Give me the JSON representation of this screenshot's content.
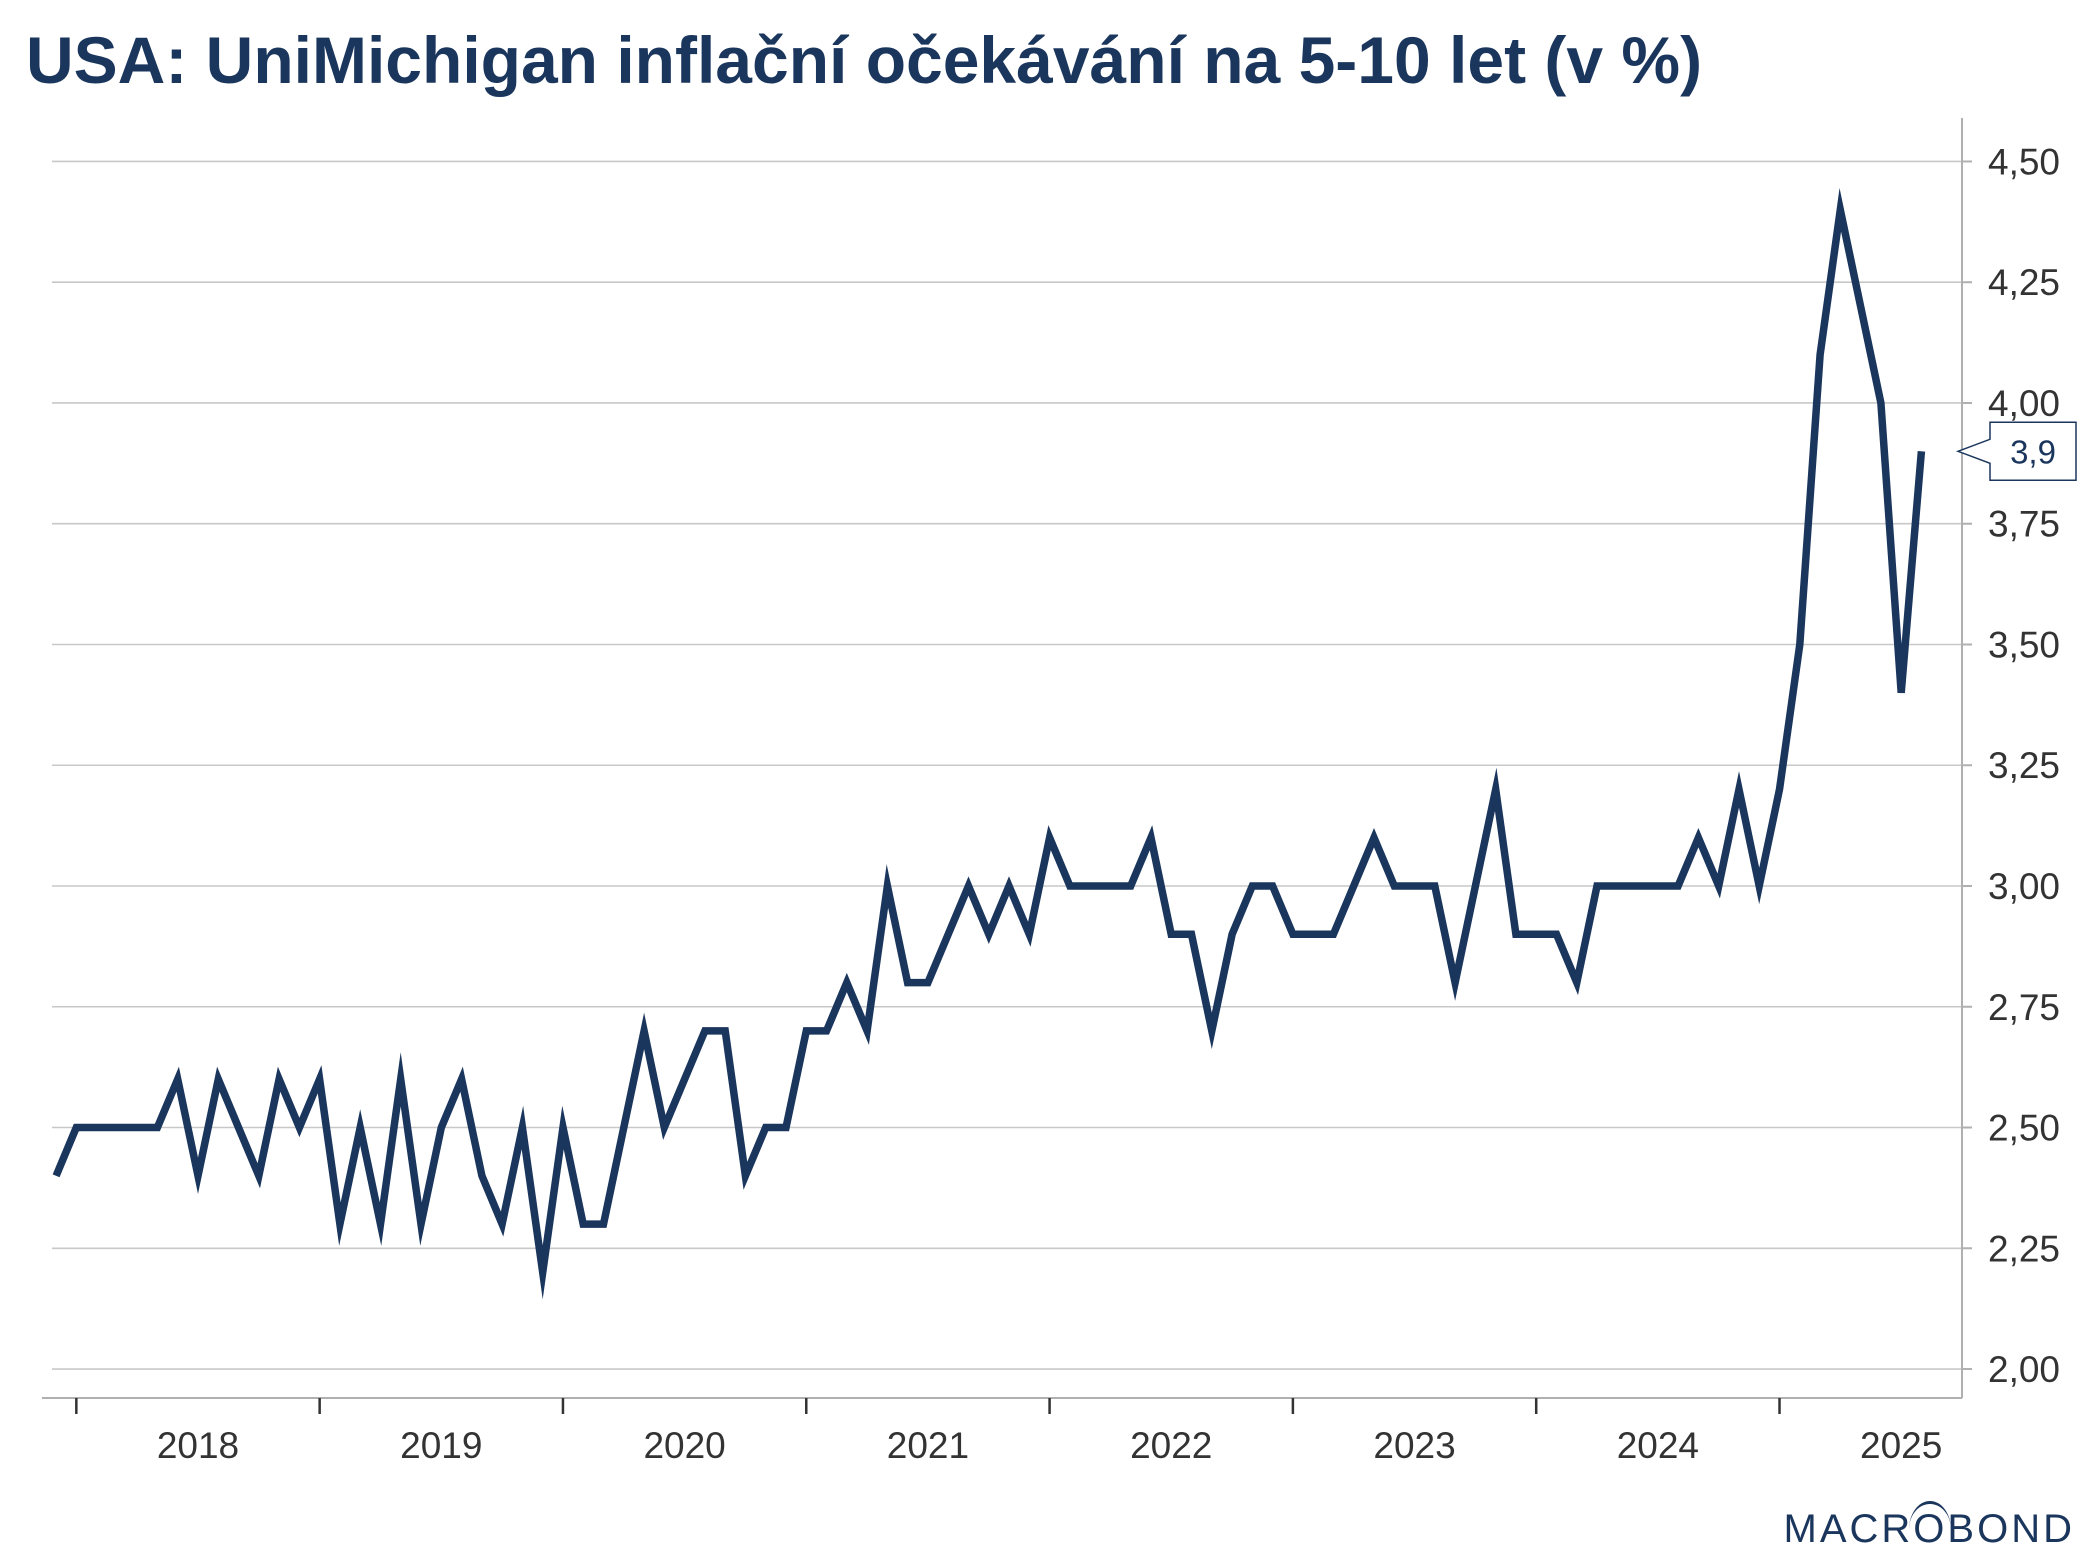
{
  "chart_data": {
    "type": "line",
    "title": "USA: UniMichigan inflační očekávání na 5-10 let (v %)",
    "xlabel": "",
    "ylabel": "",
    "ylim": [
      1.94,
      4.59
    ],
    "y_ticks": [
      "2,00",
      "2,25",
      "2,50",
      "2,75",
      "3,00",
      "3,25",
      "3,50",
      "3,75",
      "4,00",
      "4,25",
      "4,50"
    ],
    "y_tick_values": [
      2.0,
      2.25,
      2.5,
      2.75,
      3.0,
      3.25,
      3.5,
      3.75,
      4.0,
      4.25,
      4.5
    ],
    "x_tick_labels": [
      "2018",
      "2019",
      "2020",
      "2021",
      "2022",
      "2023",
      "2024",
      "2025"
    ],
    "x_range": [
      2017.9,
      2025.75
    ],
    "grid": true,
    "legend": "none",
    "series": [
      {
        "name": "UniMichigan inflační očekávání na 5-10 let",
        "start": "2017-12",
        "frequency": "monthly",
        "values": [
          2.4,
          2.5,
          2.5,
          2.5,
          2.5,
          2.5,
          2.6,
          2.4,
          2.6,
          2.5,
          2.4,
          2.6,
          2.5,
          2.6,
          2.3,
          2.5,
          2.3,
          2.6,
          2.3,
          2.5,
          2.6,
          2.4,
          2.3,
          2.5,
          2.2,
          2.5,
          2.3,
          2.3,
          2.5,
          2.7,
          2.5,
          2.6,
          2.7,
          2.7,
          2.4,
          2.5,
          2.5,
          2.7,
          2.7,
          2.8,
          2.7,
          3.0,
          2.8,
          2.8,
          2.9,
          3.0,
          2.9,
          3.0,
          2.9,
          3.1,
          3.0,
          3.0,
          3.0,
          3.0,
          3.1,
          2.9,
          2.9,
          2.7,
          2.9,
          3.0,
          3.0,
          2.9,
          2.9,
          2.9,
          3.0,
          3.1,
          3.0,
          3.0,
          3.0,
          2.8,
          3.0,
          3.2,
          2.9,
          2.9,
          2.9,
          2.8,
          3.0,
          3.0,
          3.0,
          3.0,
          3.0,
          3.1,
          3.0,
          3.2,
          3.0,
          3.2,
          3.5,
          4.1,
          4.4,
          4.2,
          4.0,
          3.4,
          3.9
        ]
      }
    ],
    "last_value_label": "3,9",
    "annotations": [
      "3,9"
    ]
  },
  "branding": {
    "pre": "MACR",
    "o": "O",
    "post": "BOND"
  }
}
